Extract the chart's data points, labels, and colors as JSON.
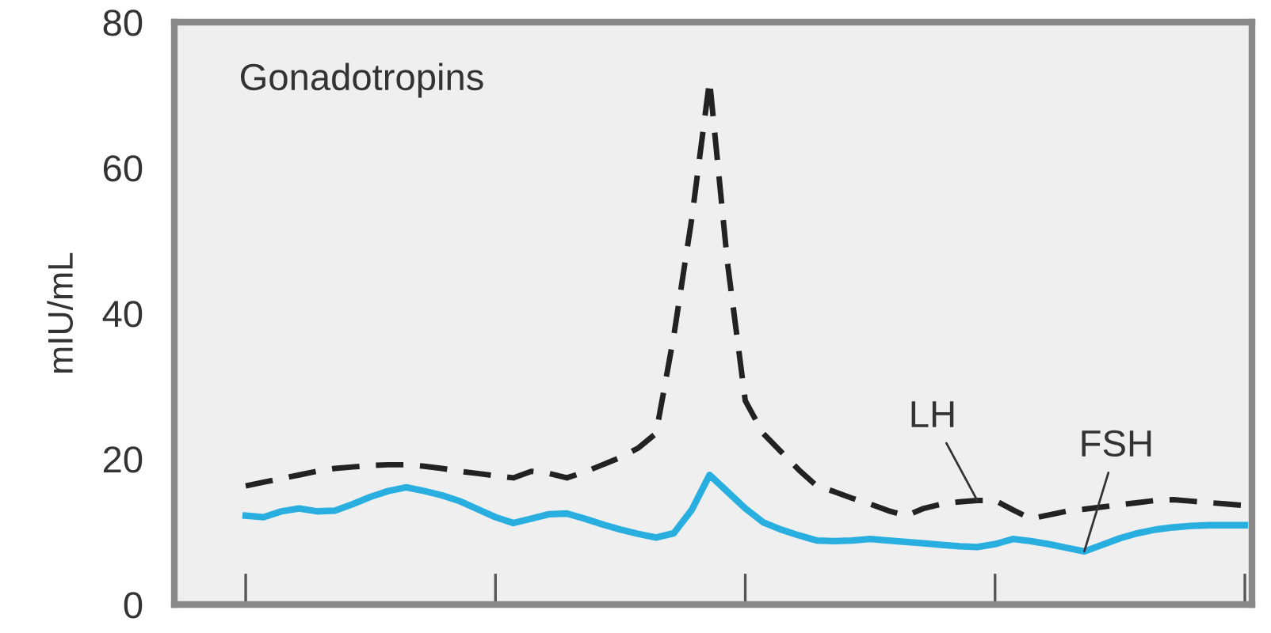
{
  "chart_data": {
    "type": "line",
    "title": "Gonadotropins",
    "ylabel": "mIU/mL",
    "categories": [
      null,
      null,
      null,
      null,
      null,
      null,
      null,
      null,
      null,
      null,
      null,
      null,
      null,
      null,
      null,
      null,
      null,
      null,
      null,
      null,
      null,
      null,
      null,
      null,
      null,
      null,
      null,
      null,
      null,
      null,
      null,
      null,
      null,
      null,
      null,
      null,
      null,
      null,
      null,
      null,
      null,
      null,
      null,
      null,
      null,
      null,
      null,
      null,
      null,
      null,
      null,
      null,
      null,
      null,
      null,
      null,
      null
    ],
    "ylim": [
      0,
      80
    ],
    "yticks": [
      0,
      20,
      40,
      60,
      80
    ],
    "grid": false,
    "legend": false,
    "series": [
      {
        "name": "LH",
        "color": "#222222",
        "line_style": "dashed",
        "values": [
          16.3,
          16.8,
          17.3,
          17.8,
          18.3,
          18.7,
          18.9,
          19.1,
          19.2,
          19.2,
          19.0,
          18.7,
          18.3,
          18.0,
          17.7,
          17.4,
          18.3,
          18.0,
          17.4,
          18.2,
          19.2,
          20.2,
          21.5,
          23.5,
          37,
          53,
          72,
          47,
          28,
          23.5,
          21,
          18.5,
          16.3,
          15.5,
          14.6,
          13.8,
          12.9,
          12.2,
          13.2,
          13.8,
          14.1,
          14.3,
          14.3,
          13,
          11.8,
          12.3,
          12.8,
          13.1,
          13.4,
          13.7,
          14,
          14.3,
          14.4,
          14.2,
          14,
          13.8,
          13.6
        ]
      },
      {
        "name": "FSH",
        "color": "#29aee0",
        "line_style": "solid",
        "values": [
          12.2,
          12,
          12.8,
          13.2,
          12.8,
          12.9,
          13.8,
          14.8,
          15.6,
          16.1,
          15.6,
          15,
          14.2,
          13.1,
          12,
          11.2,
          11.8,
          12.4,
          12.5,
          11.8,
          11,
          10.3,
          9.7,
          9.2,
          9.8,
          13,
          17.8,
          15.5,
          13.2,
          11.3,
          10.3,
          9.5,
          8.8,
          8.7,
          8.8,
          9,
          8.8,
          8.6,
          8.4,
          8.2,
          8,
          7.9,
          8.3,
          9,
          8.7,
          8.3,
          7.8,
          7.3,
          8.2,
          9.1,
          9.8,
          10.3,
          10.6,
          10.8,
          10.9,
          10.9,
          10.9
        ]
      }
    ]
  }
}
